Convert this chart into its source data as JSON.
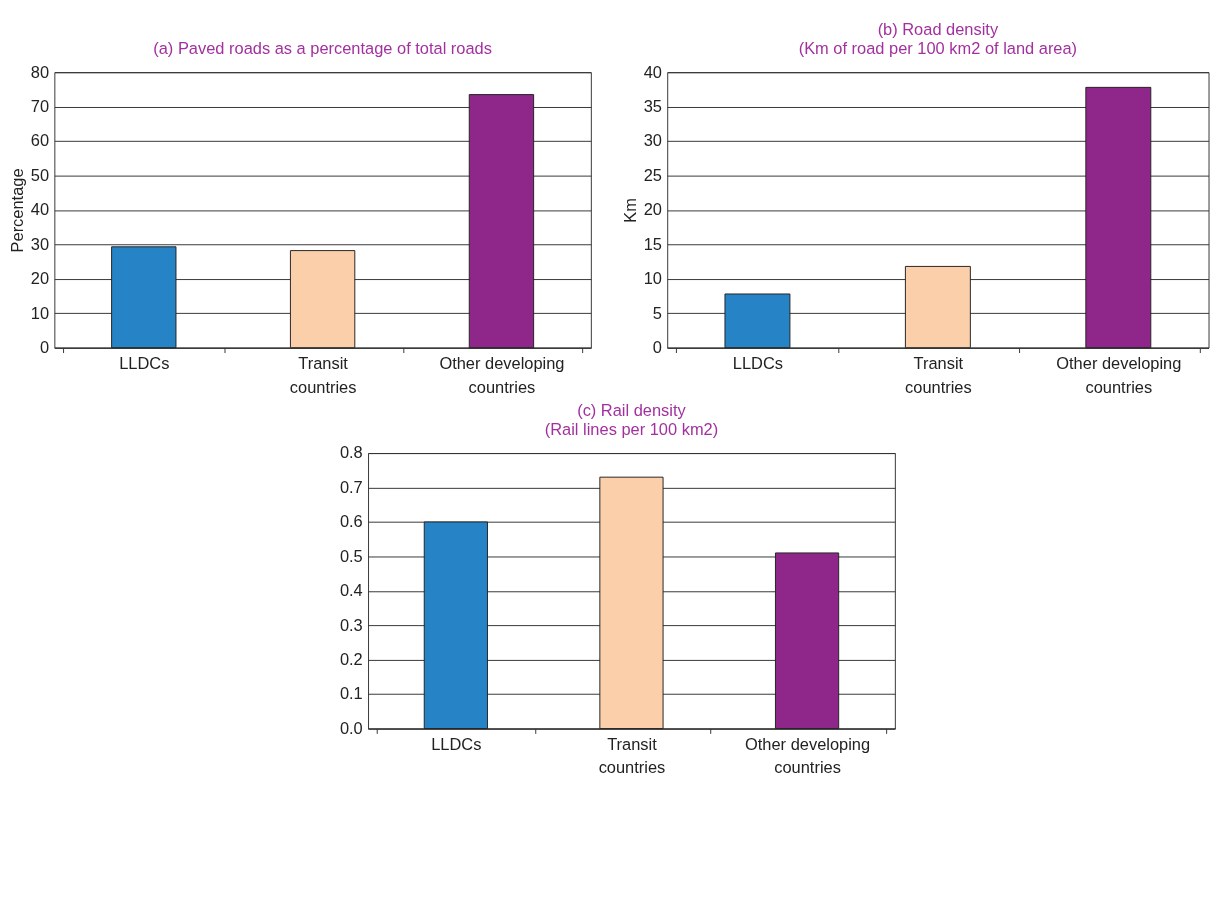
{
  "chart_data": [
    {
      "type": "bar",
      "title": "(a) Paved roads as a percentage of total roads",
      "ylabel": "Percentage",
      "categories": [
        "LLDCs",
        "Transit countries",
        "Other developing countries"
      ],
      "values": [
        29.3,
        28.2,
        73.5
      ],
      "colors": [
        "#2683c6",
        "#fbcfaa",
        "#8f278b"
      ],
      "ylim": [
        0,
        80
      ],
      "yticks": [
        0,
        10,
        20,
        30,
        40,
        50,
        60,
        70,
        80
      ],
      "grid": "y"
    },
    {
      "type": "bar",
      "title": "(b) Road density",
      "subtitle": "(Km of road per 100 km2 of land area)",
      "ylabel": "Km",
      "categories": [
        "LLDCs",
        "Transit countries",
        "Other developing countries"
      ],
      "values": [
        7.8,
        11.8,
        37.8
      ],
      "colors": [
        "#2683c6",
        "#fbcfaa",
        "#8f278b"
      ],
      "ylim": [
        0,
        40
      ],
      "yticks": [
        0,
        5,
        10,
        15,
        20,
        25,
        30,
        35,
        40
      ],
      "grid": "y"
    },
    {
      "type": "bar",
      "title": "(c) Rail density",
      "subtitle": "(Rail lines per 100 km2)",
      "categories": [
        "LLDCs",
        "Transit countries",
        "Other developing countries"
      ],
      "values": [
        0.6,
        0.73,
        0.51
      ],
      "colors": [
        "#2683c6",
        "#fbcfaa",
        "#8f278b"
      ],
      "ylim": [
        0,
        0.8
      ],
      "yticks": [
        {
          "value": 0,
          "label": "0.0"
        },
        0.1,
        0.2,
        0.3,
        0.4,
        0.5,
        0.6,
        0.7,
        0.8
      ],
      "grid": "y"
    }
  ]
}
